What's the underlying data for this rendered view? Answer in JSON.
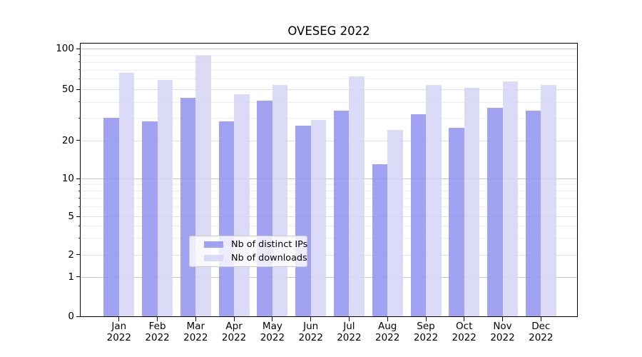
{
  "title": "OVESEG 2022",
  "chart_data": {
    "type": "bar",
    "title": "OVESEG 2022",
    "categories": [
      "Jan",
      "Feb",
      "Mar",
      "Apr",
      "May",
      "Jun",
      "Jul",
      "Aug",
      "Sep",
      "Oct",
      "Nov",
      "Dec"
    ],
    "category_year": "2022",
    "series": [
      {
        "name": "Nb of distinct IPs",
        "color": "#9292F0",
        "alpha": 0.85,
        "values": [
          30,
          28,
          43,
          28,
          41,
          26,
          34,
          13,
          32,
          25,
          36,
          34
        ]
      },
      {
        "name": "Nb of downloads",
        "color": "#D5D5F7",
        "alpha": 0.85,
        "values": [
          66,
          59,
          89,
          46,
          54,
          29,
          62,
          24,
          54,
          51,
          57,
          54
        ]
      }
    ],
    "y_axis": {
      "scale": "symlog",
      "tick_values": [
        0,
        1,
        2,
        5,
        10,
        20,
        50,
        100
      ],
      "tick_labels": [
        "0",
        "1",
        "2",
        "5",
        "10",
        "20",
        "50",
        "100"
      ],
      "ylim": [
        0,
        110
      ]
    },
    "x_axis": {
      "tick_line1": [
        "Jan",
        "Feb",
        "Mar",
        "Apr",
        "May",
        "Jun",
        "Jul",
        "Aug",
        "Sep",
        "Oct",
        "Nov",
        "Dec"
      ],
      "tick_line2": "2022"
    },
    "grid": "on",
    "legend": {
      "position": "lower center",
      "entries": [
        "Nb of distinct IPs",
        "Nb of downloads"
      ]
    }
  }
}
